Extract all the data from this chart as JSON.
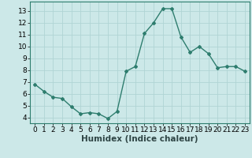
{
  "x": [
    0,
    1,
    2,
    3,
    4,
    5,
    6,
    7,
    8,
    9,
    10,
    11,
    12,
    13,
    14,
    15,
    16,
    17,
    18,
    19,
    20,
    21,
    22,
    23
  ],
  "y": [
    6.8,
    6.2,
    5.7,
    5.6,
    4.9,
    4.3,
    4.4,
    4.3,
    3.9,
    4.5,
    7.9,
    8.3,
    11.1,
    12.0,
    13.2,
    13.2,
    10.8,
    9.5,
    10.0,
    9.4,
    8.2,
    8.3,
    8.3,
    7.9
  ],
  "line_color": "#2e7d6e",
  "bg_color": "#cce8e8",
  "grid_color": "#b0d4d4",
  "xlabel": "Humidex (Indice chaleur)",
  "ylim_min": 3.5,
  "ylim_max": 13.8,
  "xlim_min": -0.5,
  "xlim_max": 23.5,
  "yticks": [
    4,
    5,
    6,
    7,
    8,
    9,
    10,
    11,
    12,
    13
  ],
  "xticks": [
    0,
    1,
    2,
    3,
    4,
    5,
    6,
    7,
    8,
    9,
    10,
    11,
    12,
    13,
    14,
    15,
    16,
    17,
    18,
    19,
    20,
    21,
    22,
    23
  ],
  "marker": "D",
  "marker_size": 2,
  "linewidth": 1.0,
  "xlabel_fontsize": 7.5,
  "tick_fontsize": 6.5
}
